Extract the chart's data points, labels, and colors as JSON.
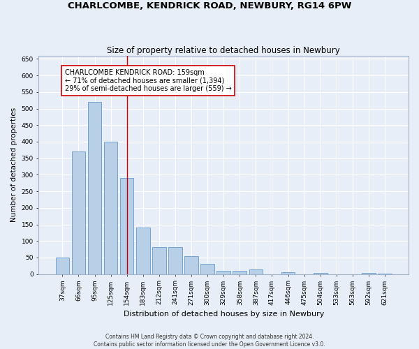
{
  "title": "CHARLCOMBE, KENDRICK ROAD, NEWBURY, RG14 6PW",
  "subtitle": "Size of property relative to detached houses in Newbury",
  "xlabel": "Distribution of detached houses by size in Newbury",
  "ylabel": "Number of detached properties",
  "footer_line1": "Contains HM Land Registry data © Crown copyright and database right 2024.",
  "footer_line2": "Contains public sector information licensed under the Open Government Licence v3.0.",
  "categories": [
    "37sqm",
    "66sqm",
    "95sqm",
    "125sqm",
    "154sqm",
    "183sqm",
    "212sqm",
    "241sqm",
    "271sqm",
    "300sqm",
    "329sqm",
    "358sqm",
    "387sqm",
    "417sqm",
    "446sqm",
    "475sqm",
    "504sqm",
    "533sqm",
    "563sqm",
    "592sqm",
    "621sqm"
  ],
  "values": [
    50,
    370,
    520,
    400,
    290,
    140,
    82,
    82,
    55,
    30,
    10,
    10,
    13,
    0,
    5,
    0,
    4,
    0,
    0,
    4,
    2
  ],
  "bar_color": "#b8cfe8",
  "bar_edge_color": "#6699cc",
  "highlight_bar_index": 4,
  "highlight_line_color": "#cc0000",
  "annotation_text": "CHARLCOMBE KENDRICK ROAD: 159sqm\n← 71% of detached houses are smaller (1,394)\n29% of semi-detached houses are larger (559) →",
  "annotation_box_color": "#ffffff",
  "annotation_box_edge_color": "#cc0000",
  "ylim": [
    0,
    660
  ],
  "yticks": [
    0,
    50,
    100,
    150,
    200,
    250,
    300,
    350,
    400,
    450,
    500,
    550,
    600,
    650
  ],
  "background_color": "#e8eef7",
  "plot_bg_color": "#e8eef7",
  "grid_color": "#ffffff",
  "title_fontsize": 9.5,
  "subtitle_fontsize": 8.5,
  "xlabel_fontsize": 8,
  "ylabel_fontsize": 7.5,
  "tick_fontsize": 6.5,
  "annotation_fontsize": 7,
  "footer_fontsize": 5.5
}
